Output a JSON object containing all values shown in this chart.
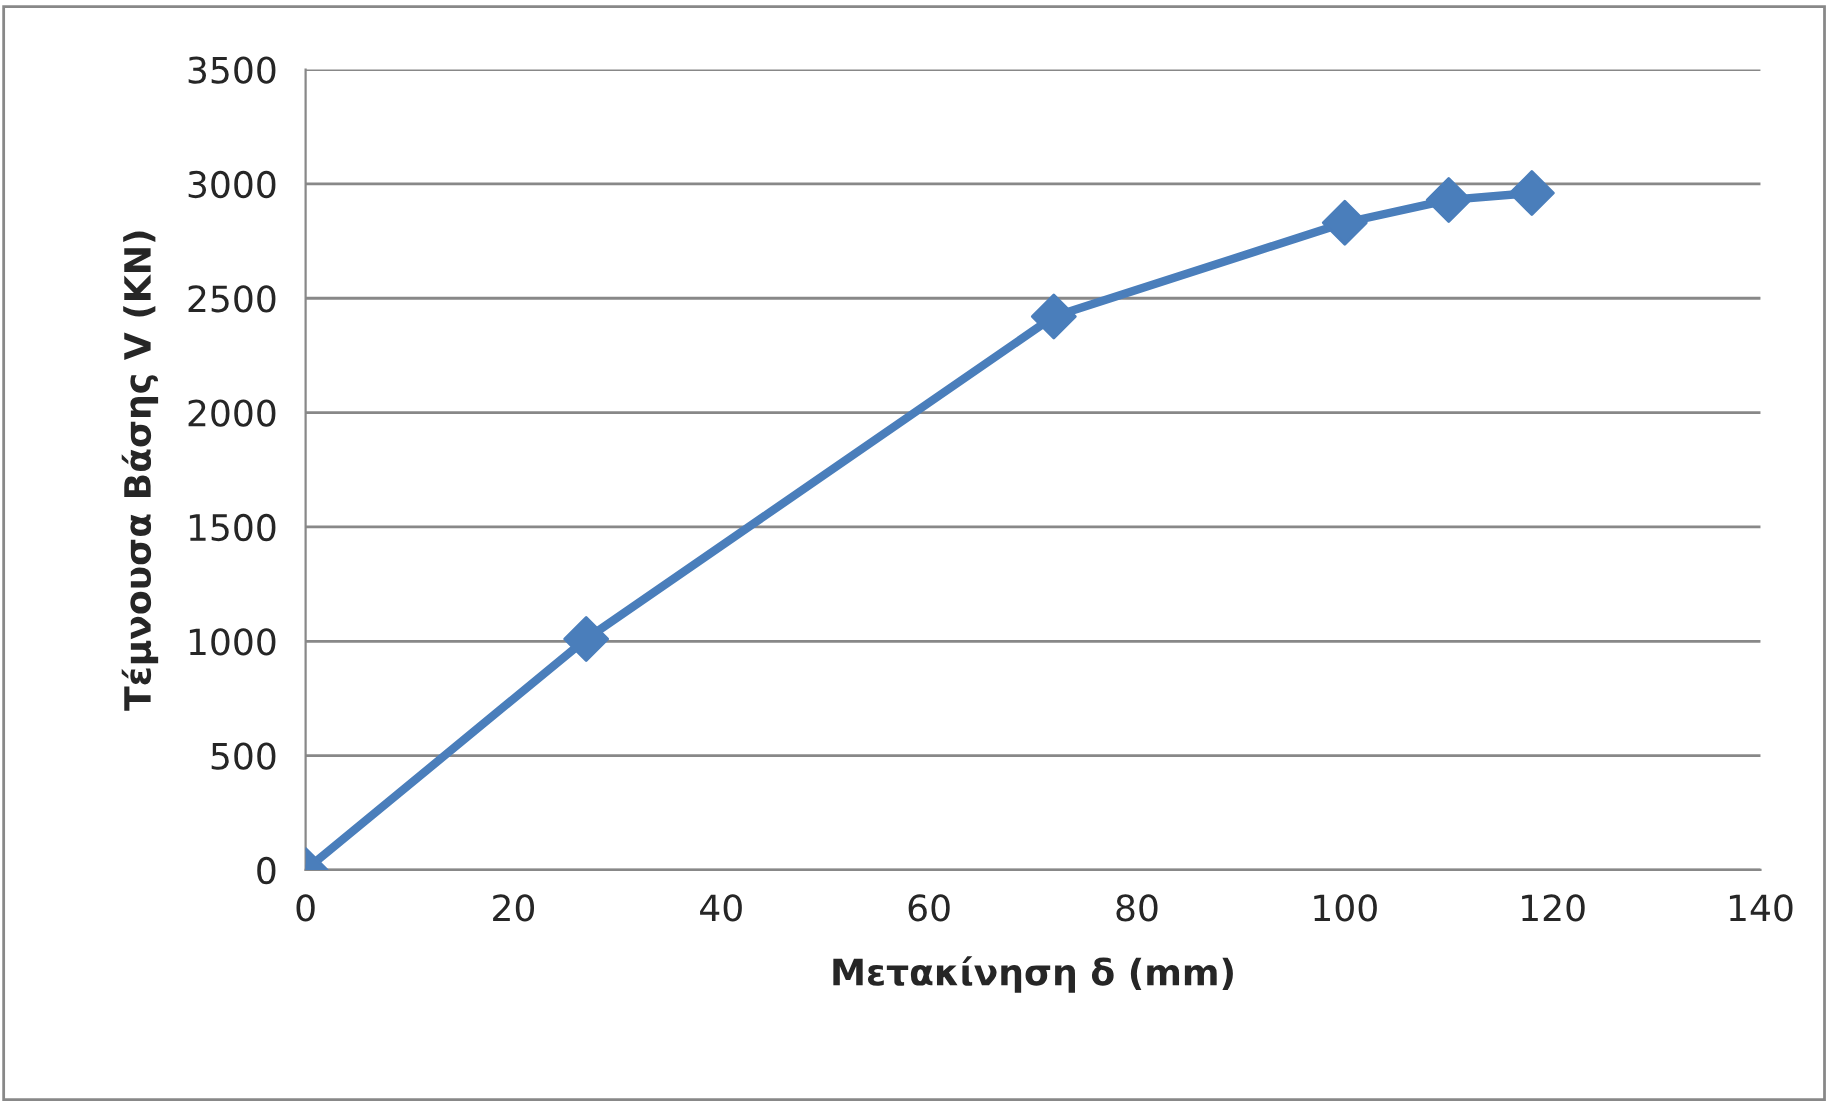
{
  "chart_data": {
    "type": "line",
    "xlabel": "Μετακίνηση δ (mm)",
    "ylabel": "Τέμνουσα Βάσης V (KN)",
    "series": [
      {
        "color": "#4a7ebb",
        "x": [
          0,
          27,
          72,
          100,
          110,
          118
        ],
        "values": [
          0,
          1010,
          2420,
          2830,
          2930,
          2960
        ]
      }
    ],
    "xlim": [
      0,
      140
    ],
    "xticks": [
      0,
      20,
      40,
      60,
      80,
      100,
      120,
      140
    ],
    "ylim": [
      0,
      3500
    ],
    "yticks": [
      0,
      500,
      1000,
      1500,
      2000,
      2500,
      3000,
      3500
    ],
    "grid": "y",
    "marker": "diamond",
    "line_style": "solid",
    "legend": false
  }
}
